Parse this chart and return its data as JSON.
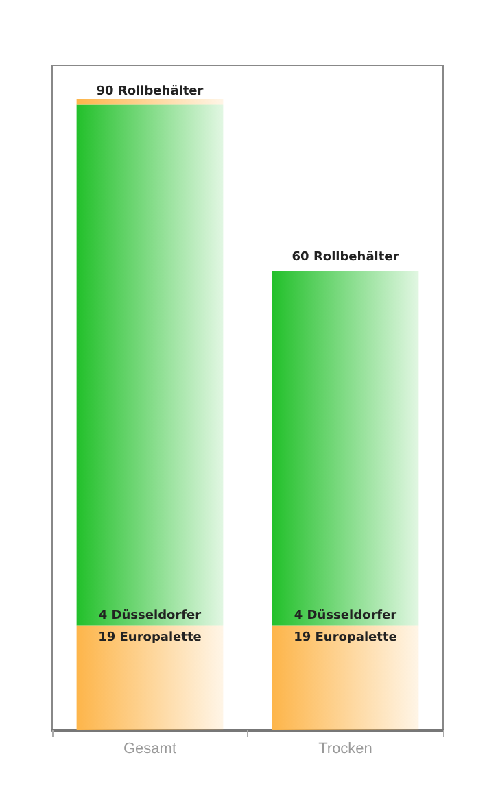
{
  "chart_data": {
    "type": "bar",
    "stacked": true,
    "tick_labels": "x",
    "categories": [
      "Gesamt",
      "Trocken"
    ],
    "series": [
      {
        "color": "#fdb54a",
        "values": [
          19,
          19
        ],
        "value_labels": [
          "19 Europalette",
          "19 Europalette"
        ]
      },
      {
        "color": "#22c02a",
        "values": [
          4,
          4
        ],
        "value_labels": [
          "4 Düsseldorfer",
          "4 Düsseldorfer"
        ]
      },
      {
        "color": "#22c02a",
        "values": [
          90,
          60
        ],
        "value_labels": [
          "90 Rollbehälter",
          "60 Rollbehälter"
        ]
      },
      {
        "color": "#fdb54a",
        "values": [
          1,
          null
        ]
      }
    ]
  }
}
